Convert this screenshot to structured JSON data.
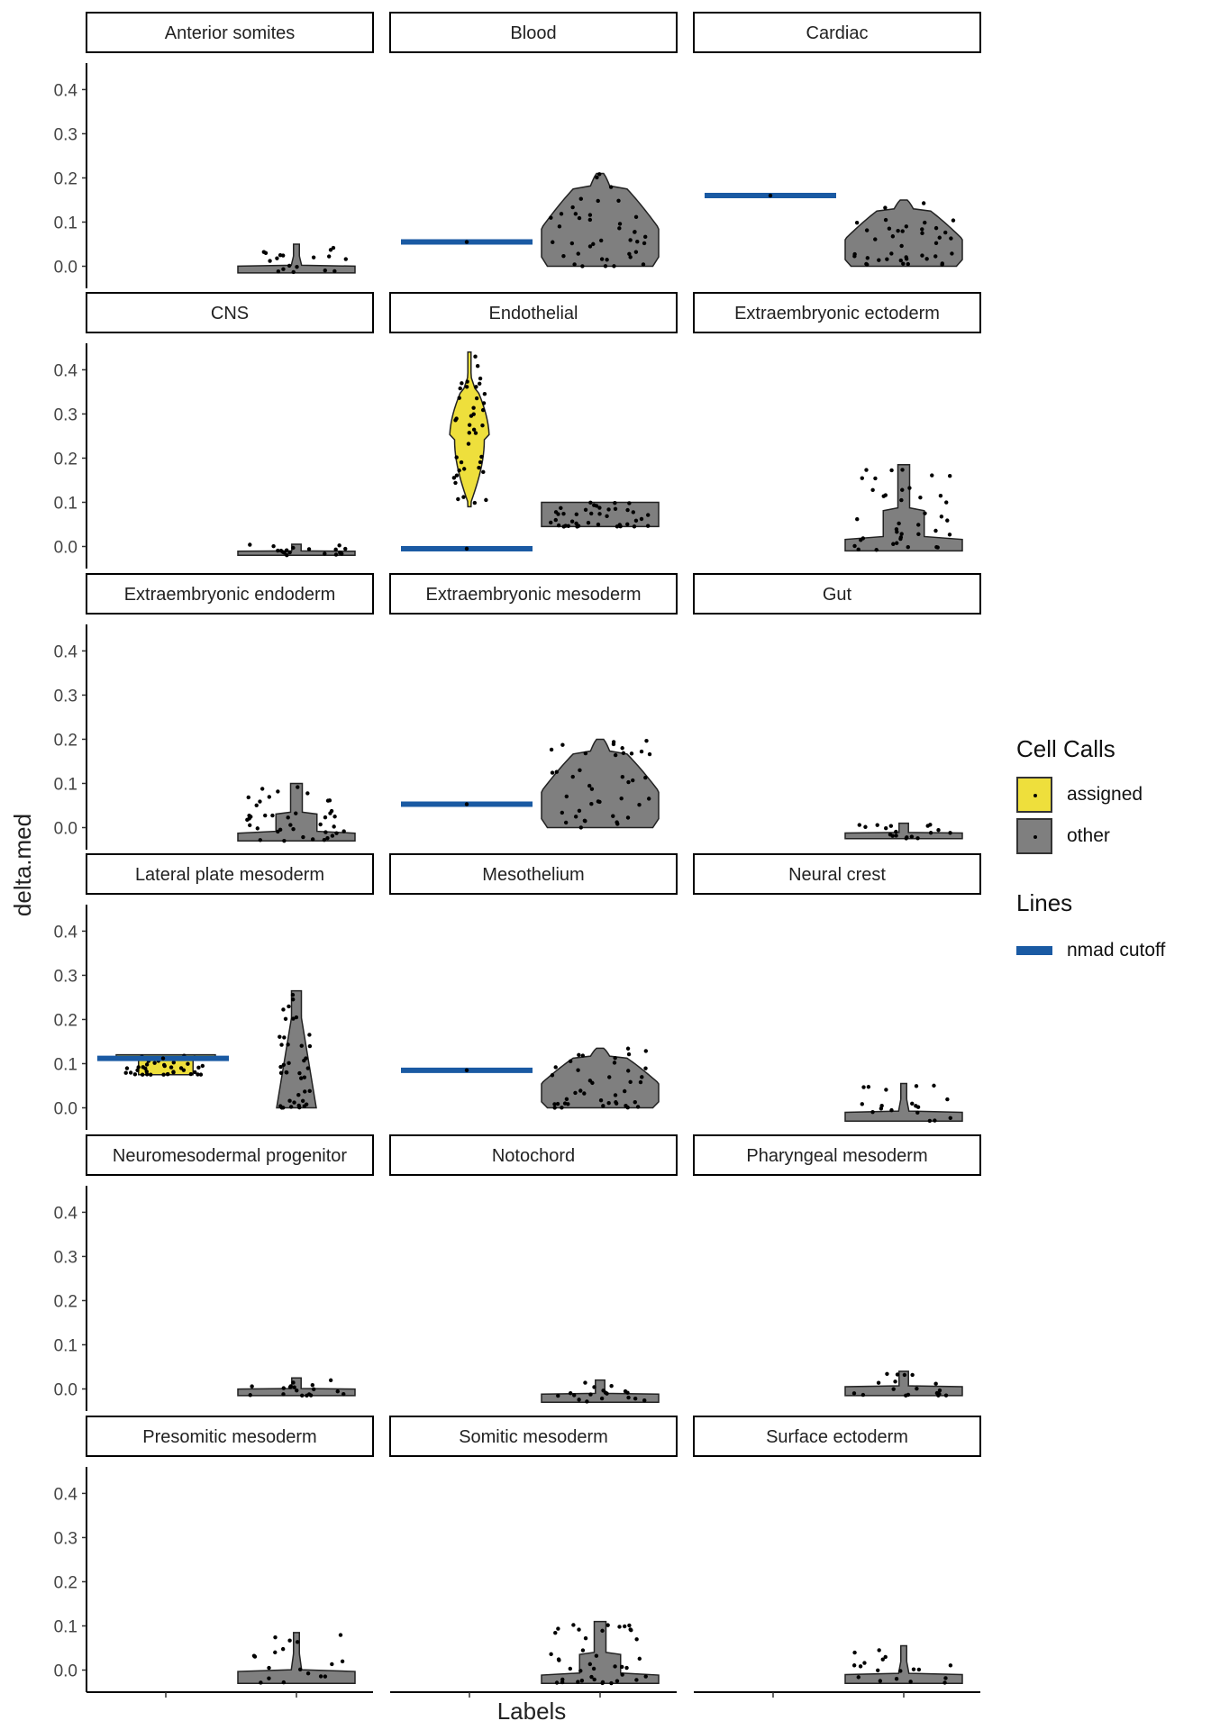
{
  "chart_data": {
    "type": "violin",
    "ylabel": "delta.med",
    "xlabel": "Labels",
    "ylim": [
      -0.05,
      0.46
    ],
    "yticks": [
      "0.0",
      "0.1",
      "0.2",
      "0.3",
      "0.4"
    ],
    "facet_layout": {
      "rows": 6,
      "cols": 3
    },
    "colors": {
      "assigned": "#eedf3c",
      "other": "#7f7f7f",
      "nmad_cutoff": "#1a5aa3",
      "points": "#000000"
    },
    "legend": {
      "cell_calls_title": "Cell Calls",
      "cell_calls_items": [
        {
          "label": "assigned",
          "color": "#eedf3c"
        },
        {
          "label": "other",
          "color": "#7f7f7f"
        }
      ],
      "lines_title": "Lines",
      "lines_items": [
        {
          "label": "nmad cutoff",
          "color": "#1a5aa3"
        }
      ]
    },
    "facets": [
      {
        "label": "Anterior somites",
        "cutoff": null,
        "assigned": null,
        "other": {
          "max": 0.05,
          "min": -0.015,
          "shape": "thin"
        }
      },
      {
        "label": "Blood",
        "cutoff": 0.055,
        "assigned": null,
        "other": {
          "max": 0.21,
          "min": 0.0,
          "shape": "wide"
        }
      },
      {
        "label": "Cardiac",
        "cutoff": 0.16,
        "assigned": null,
        "other": {
          "max": 0.15,
          "min": 0.0,
          "shape": "wide"
        }
      },
      {
        "label": "CNS",
        "cutoff": null,
        "assigned": null,
        "other": {
          "max": 0.005,
          "min": -0.02,
          "shape": "flat"
        }
      },
      {
        "label": "Endothelial",
        "cutoff": -0.005,
        "assigned": {
          "max": 0.44,
          "min": 0.09,
          "shape": "tall"
        },
        "other": {
          "max": 0.1,
          "min": 0.045,
          "shape": "block"
        }
      },
      {
        "label": "Extraembryonic ectoderm",
        "cutoff": null,
        "assigned": null,
        "other": {
          "max": 0.185,
          "min": -0.01,
          "shape": "spike"
        }
      },
      {
        "label": "Extraembryonic endoderm",
        "cutoff": null,
        "assigned": null,
        "other": {
          "max": 0.1,
          "min": -0.03,
          "shape": "spike"
        }
      },
      {
        "label": "Extraembryonic mesoderm",
        "cutoff": 0.053,
        "assigned": null,
        "other": {
          "max": 0.2,
          "min": 0.0,
          "shape": "wide"
        }
      },
      {
        "label": "Gut",
        "cutoff": null,
        "assigned": null,
        "other": {
          "max": 0.01,
          "min": -0.025,
          "shape": "flat"
        }
      },
      {
        "label": "Lateral plate mesoderm",
        "cutoff": 0.112,
        "assigned": {
          "max": 0.12,
          "min": 0.075,
          "shape": "anvil"
        },
        "other": {
          "max": 0.265,
          "min": 0.0,
          "shape": "narrow"
        }
      },
      {
        "label": "Mesothelium",
        "cutoff": 0.085,
        "assigned": null,
        "other": {
          "max": 0.135,
          "min": 0.0,
          "shape": "wide"
        }
      },
      {
        "label": "Neural crest",
        "cutoff": null,
        "assigned": null,
        "other": {
          "max": 0.055,
          "min": -0.03,
          "shape": "thin"
        }
      },
      {
        "label": "Neuromesodermal progenitor",
        "cutoff": null,
        "assigned": null,
        "other": {
          "max": 0.025,
          "min": -0.015,
          "shape": "flat"
        }
      },
      {
        "label": "Notochord",
        "cutoff": null,
        "assigned": null,
        "other": {
          "max": 0.02,
          "min": -0.03,
          "shape": "flat"
        }
      },
      {
        "label": "Pharyngeal mesoderm",
        "cutoff": null,
        "assigned": null,
        "other": {
          "max": 0.04,
          "min": -0.015,
          "shape": "flat"
        }
      },
      {
        "label": "Presomitic mesoderm",
        "cutoff": null,
        "assigned": null,
        "other": {
          "max": 0.085,
          "min": -0.03,
          "shape": "thin"
        }
      },
      {
        "label": "Somitic mesoderm",
        "cutoff": null,
        "assigned": null,
        "other": {
          "max": 0.11,
          "min": -0.03,
          "shape": "spike"
        }
      },
      {
        "label": "Surface ectoderm",
        "cutoff": null,
        "assigned": null,
        "other": {
          "max": 0.055,
          "min": -0.03,
          "shape": "thin"
        }
      }
    ]
  }
}
